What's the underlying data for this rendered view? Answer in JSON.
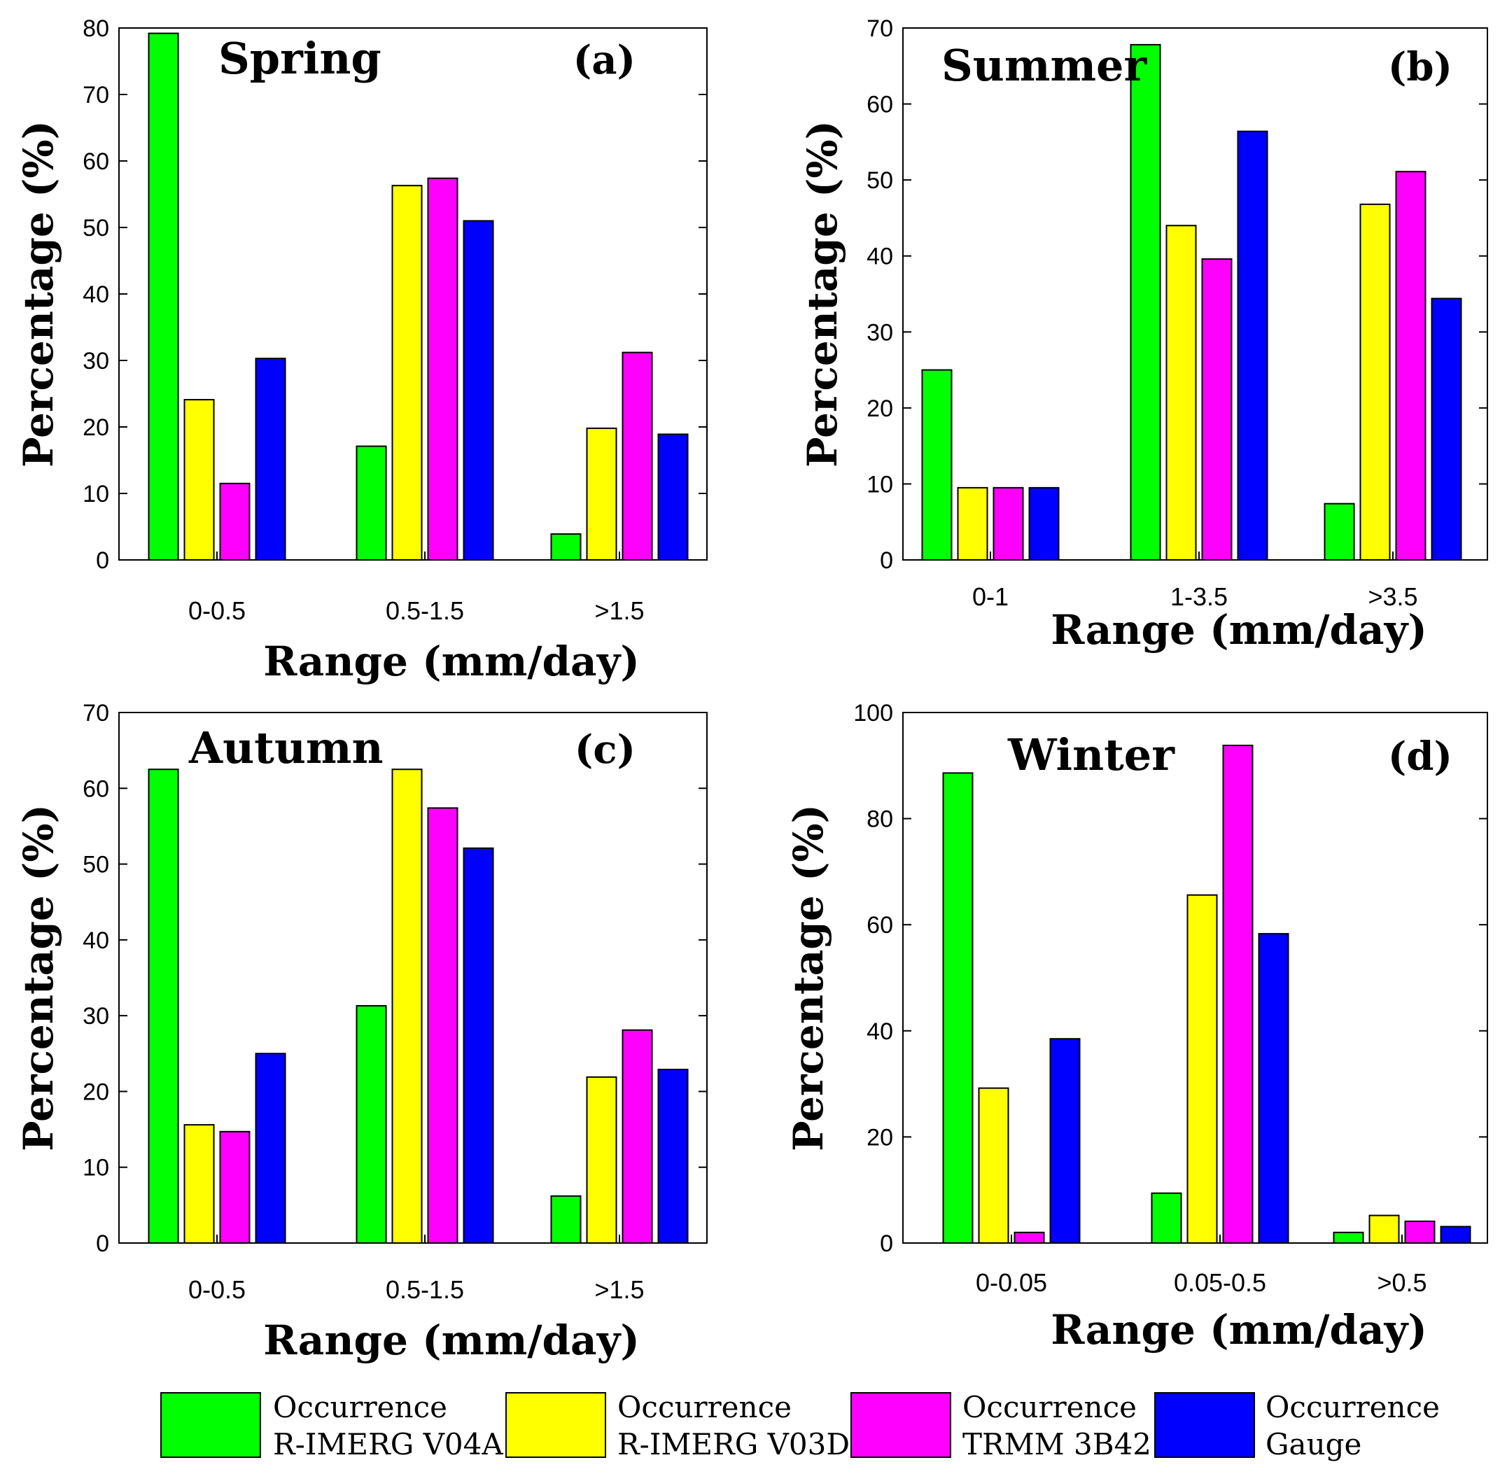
{
  "legend": [
    {
      "line1": "Occurrence",
      "line2": "R-IMERG V04A",
      "color": "#00ff00"
    },
    {
      "line1": "Occurrence",
      "line2": "R-IMERG V03D",
      "color": "#ffff00"
    },
    {
      "line1": "Occurrence",
      "line2": "TRMM 3B42",
      "color": "#ff00ff"
    },
    {
      "line1": "Occurrence",
      "line2": "Gauge",
      "color": "#0000ff"
    }
  ],
  "chart_data": [
    {
      "type": "bar",
      "title": "Spring",
      "panel_label": "(a)",
      "xlabel": "Range (mm/day)",
      "ylabel": "Percentage (%)",
      "ylim": [
        0,
        80
      ],
      "yticks": [
        0,
        10,
        20,
        30,
        40,
        50,
        60,
        70,
        80
      ],
      "categories": [
        "0-0.5",
        "0.5-1.5",
        ">1.5"
      ],
      "series": [
        {
          "name": "Occurrence R-IMERG V04A",
          "values": [
            79.2,
            17.1,
            3.9
          ]
        },
        {
          "name": "Occurrence R-IMERG V03D",
          "values": [
            24.1,
            56.3,
            19.8
          ]
        },
        {
          "name": "Occurrence TRMM 3B42",
          "values": [
            11.5,
            57.4,
            31.2
          ]
        },
        {
          "name": "Occurrence Gauge",
          "values": [
            30.3,
            51.0,
            18.9
          ]
        }
      ]
    },
    {
      "type": "bar",
      "title": "Summer",
      "panel_label": "(b)",
      "xlabel": "Range (mm/day)",
      "ylabel": "Percentage (%)",
      "ylim": [
        0,
        70
      ],
      "yticks": [
        0,
        10,
        20,
        30,
        40,
        50,
        60,
        70
      ],
      "categories": [
        "0-1",
        "1-3.5",
        ">3.5"
      ],
      "series": [
        {
          "name": "Occurrence R-IMERG V04A",
          "values": [
            25.0,
            67.8,
            7.4
          ]
        },
        {
          "name": "Occurrence R-IMERG V03D",
          "values": [
            9.5,
            44.0,
            46.8
          ]
        },
        {
          "name": "Occurrence TRMM 3B42",
          "values": [
            9.5,
            39.6,
            51.1
          ]
        },
        {
          "name": "Occurrence Gauge",
          "values": [
            9.5,
            56.4,
            34.4
          ]
        }
      ]
    },
    {
      "type": "bar",
      "title": "Autumn",
      "panel_label": "(c)",
      "xlabel": "Range (mm/day)",
      "ylabel": "Percentage (%)",
      "ylim": [
        0,
        70
      ],
      "yticks": [
        0,
        10,
        20,
        30,
        40,
        50,
        60,
        70
      ],
      "categories": [
        "0-0.5",
        "0.5-1.5",
        ">1.5"
      ],
      "series": [
        {
          "name": "Occurrence R-IMERG V04A",
          "values": [
            62.5,
            31.3,
            6.2
          ]
        },
        {
          "name": "Occurrence R-IMERG V03D",
          "values": [
            15.6,
            62.5,
            21.9
          ]
        },
        {
          "name": "Occurrence TRMM 3B42",
          "values": [
            14.7,
            57.4,
            28.1
          ]
        },
        {
          "name": "Occurrence Gauge",
          "values": [
            25.0,
            52.1,
            22.9
          ]
        }
      ]
    },
    {
      "type": "bar",
      "title": "Winter",
      "panel_label": "(d)",
      "xlabel": "Range (mm/day)",
      "ylabel": "Percentage (%)",
      "ylim": [
        0,
        100
      ],
      "yticks": [
        0,
        20,
        40,
        60,
        80,
        100
      ],
      "categories": [
        "0-0.05",
        "0.05-0.5",
        ">0.5"
      ],
      "series": [
        {
          "name": "Occurrence R-IMERG V04A",
          "values": [
            88.6,
            9.4,
            2.0
          ]
        },
        {
          "name": "Occurrence R-IMERG V03D",
          "values": [
            29.2,
            65.6,
            5.2
          ]
        },
        {
          "name": "Occurrence TRMM 3B42",
          "values": [
            2.0,
            93.8,
            4.1
          ]
        },
        {
          "name": "Occurrence Gauge",
          "values": [
            38.5,
            58.3,
            3.1
          ]
        }
      ]
    }
  ]
}
